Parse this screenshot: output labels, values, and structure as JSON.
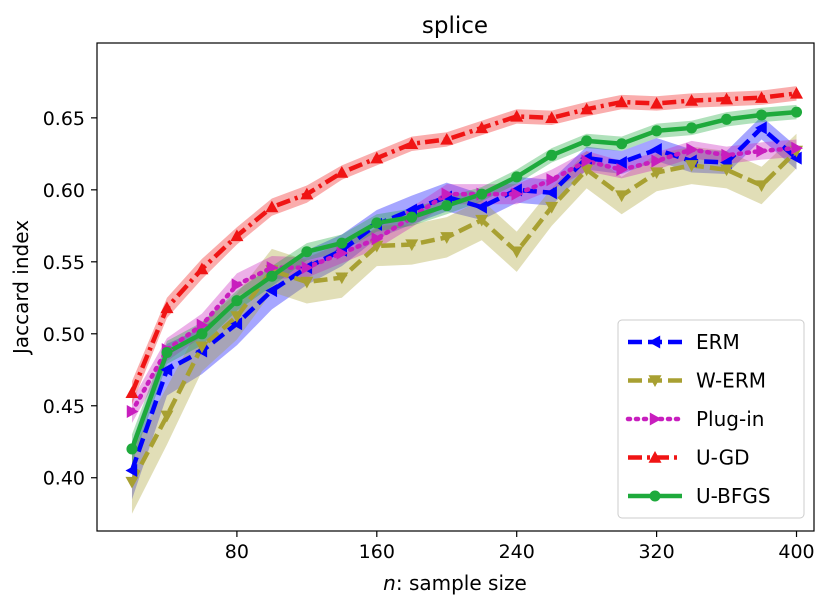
{
  "chart_data": {
    "type": "line",
    "title": "splice",
    "xlabel": "n: sample size",
    "ylabel": "Jaccard index",
    "xlim": [
      0,
      410
    ],
    "ylim": [
      0.363,
      0.702
    ],
    "xticks": [
      80,
      160,
      240,
      320,
      400
    ],
    "xtick_labels": [
      "80",
      "160",
      "240",
      "320",
      "400"
    ],
    "yticks": [
      0.4,
      0.45,
      0.5,
      0.55,
      0.6,
      0.65
    ],
    "ytick_labels": [
      "0.40",
      "0.45",
      "0.50",
      "0.55",
      "0.60",
      "0.65"
    ],
    "grid": false,
    "legend_position": "lower-right",
    "x": [
      20,
      40,
      60,
      80,
      100,
      120,
      140,
      160,
      180,
      200,
      220,
      240,
      260,
      280,
      300,
      320,
      340,
      360,
      380,
      400
    ],
    "series": [
      {
        "name": "ERM",
        "color": "#0000ff",
        "marker": "triangle-left",
        "linestyle": "dashed",
        "values": [
          0.405,
          0.475,
          0.488,
          0.507,
          0.53,
          0.546,
          0.558,
          0.576,
          0.586,
          0.595,
          0.588,
          0.6,
          0.598,
          0.622,
          0.619,
          0.628,
          0.62,
          0.619,
          0.643,
          0.622
        ],
        "band": [
          0.02,
          0.018,
          0.016,
          0.015,
          0.013,
          0.012,
          0.011,
          0.01,
          0.01,
          0.01,
          0.009,
          0.009,
          0.009,
          0.008,
          0.008,
          0.008,
          0.008,
          0.008,
          0.008,
          0.008
        ]
      },
      {
        "name": "W-ERM",
        "color": "#a8a032",
        "marker": "triangle-down",
        "linestyle": "dashed",
        "values": [
          0.397,
          0.443,
          0.491,
          0.512,
          0.544,
          0.536,
          0.539,
          0.561,
          0.562,
          0.567,
          0.579,
          0.557,
          0.588,
          0.614,
          0.596,
          0.612,
          0.617,
          0.614,
          0.603,
          0.627
        ],
        "band": [
          0.022,
          0.02,
          0.017,
          0.016,
          0.015,
          0.015,
          0.014,
          0.014,
          0.014,
          0.014,
          0.014,
          0.014,
          0.013,
          0.013,
          0.013,
          0.013,
          0.013,
          0.013,
          0.013,
          0.012
        ]
      },
      {
        "name": "Plug-in",
        "color": "#c81ebe",
        "marker": "triangle-right",
        "linestyle": "dotted",
        "values": [
          0.446,
          0.489,
          0.506,
          0.534,
          0.546,
          0.546,
          0.556,
          0.566,
          0.581,
          0.597,
          0.597,
          0.597,
          0.607,
          0.62,
          0.614,
          0.62,
          0.628,
          0.624,
          0.627,
          0.629
        ],
        "band": [
          0.008,
          0.008,
          0.008,
          0.008,
          0.008,
          0.007,
          0.007,
          0.007,
          0.007,
          0.007,
          0.007,
          0.007,
          0.007,
          0.007,
          0.006,
          0.006,
          0.006,
          0.006,
          0.006,
          0.006
        ]
      },
      {
        "name": "U-GD",
        "color": "#f01414",
        "marker": "triangle-up",
        "linestyle": "dashdot",
        "values": [
          0.459,
          0.518,
          0.545,
          0.568,
          0.588,
          0.597,
          0.612,
          0.622,
          0.632,
          0.635,
          0.643,
          0.651,
          0.65,
          0.656,
          0.661,
          0.66,
          0.662,
          0.663,
          0.664,
          0.667
        ],
        "band": [
          0.008,
          0.007,
          0.007,
          0.006,
          0.006,
          0.006,
          0.005,
          0.005,
          0.005,
          0.005,
          0.005,
          0.005,
          0.005,
          0.005,
          0.005,
          0.005,
          0.005,
          0.005,
          0.005,
          0.005
        ]
      },
      {
        "name": "U-BFGS",
        "color": "#1eaa3c",
        "marker": "circle",
        "linestyle": "solid",
        "values": [
          0.42,
          0.487,
          0.5,
          0.523,
          0.54,
          0.557,
          0.563,
          0.577,
          0.581,
          0.589,
          0.597,
          0.609,
          0.624,
          0.634,
          0.632,
          0.641,
          0.643,
          0.649,
          0.652,
          0.654
        ],
        "band": [
          0.01,
          0.008,
          0.008,
          0.007,
          0.007,
          0.006,
          0.006,
          0.006,
          0.006,
          0.006,
          0.005,
          0.005,
          0.005,
          0.005,
          0.005,
          0.005,
          0.005,
          0.005,
          0.005,
          0.005
        ]
      }
    ]
  }
}
